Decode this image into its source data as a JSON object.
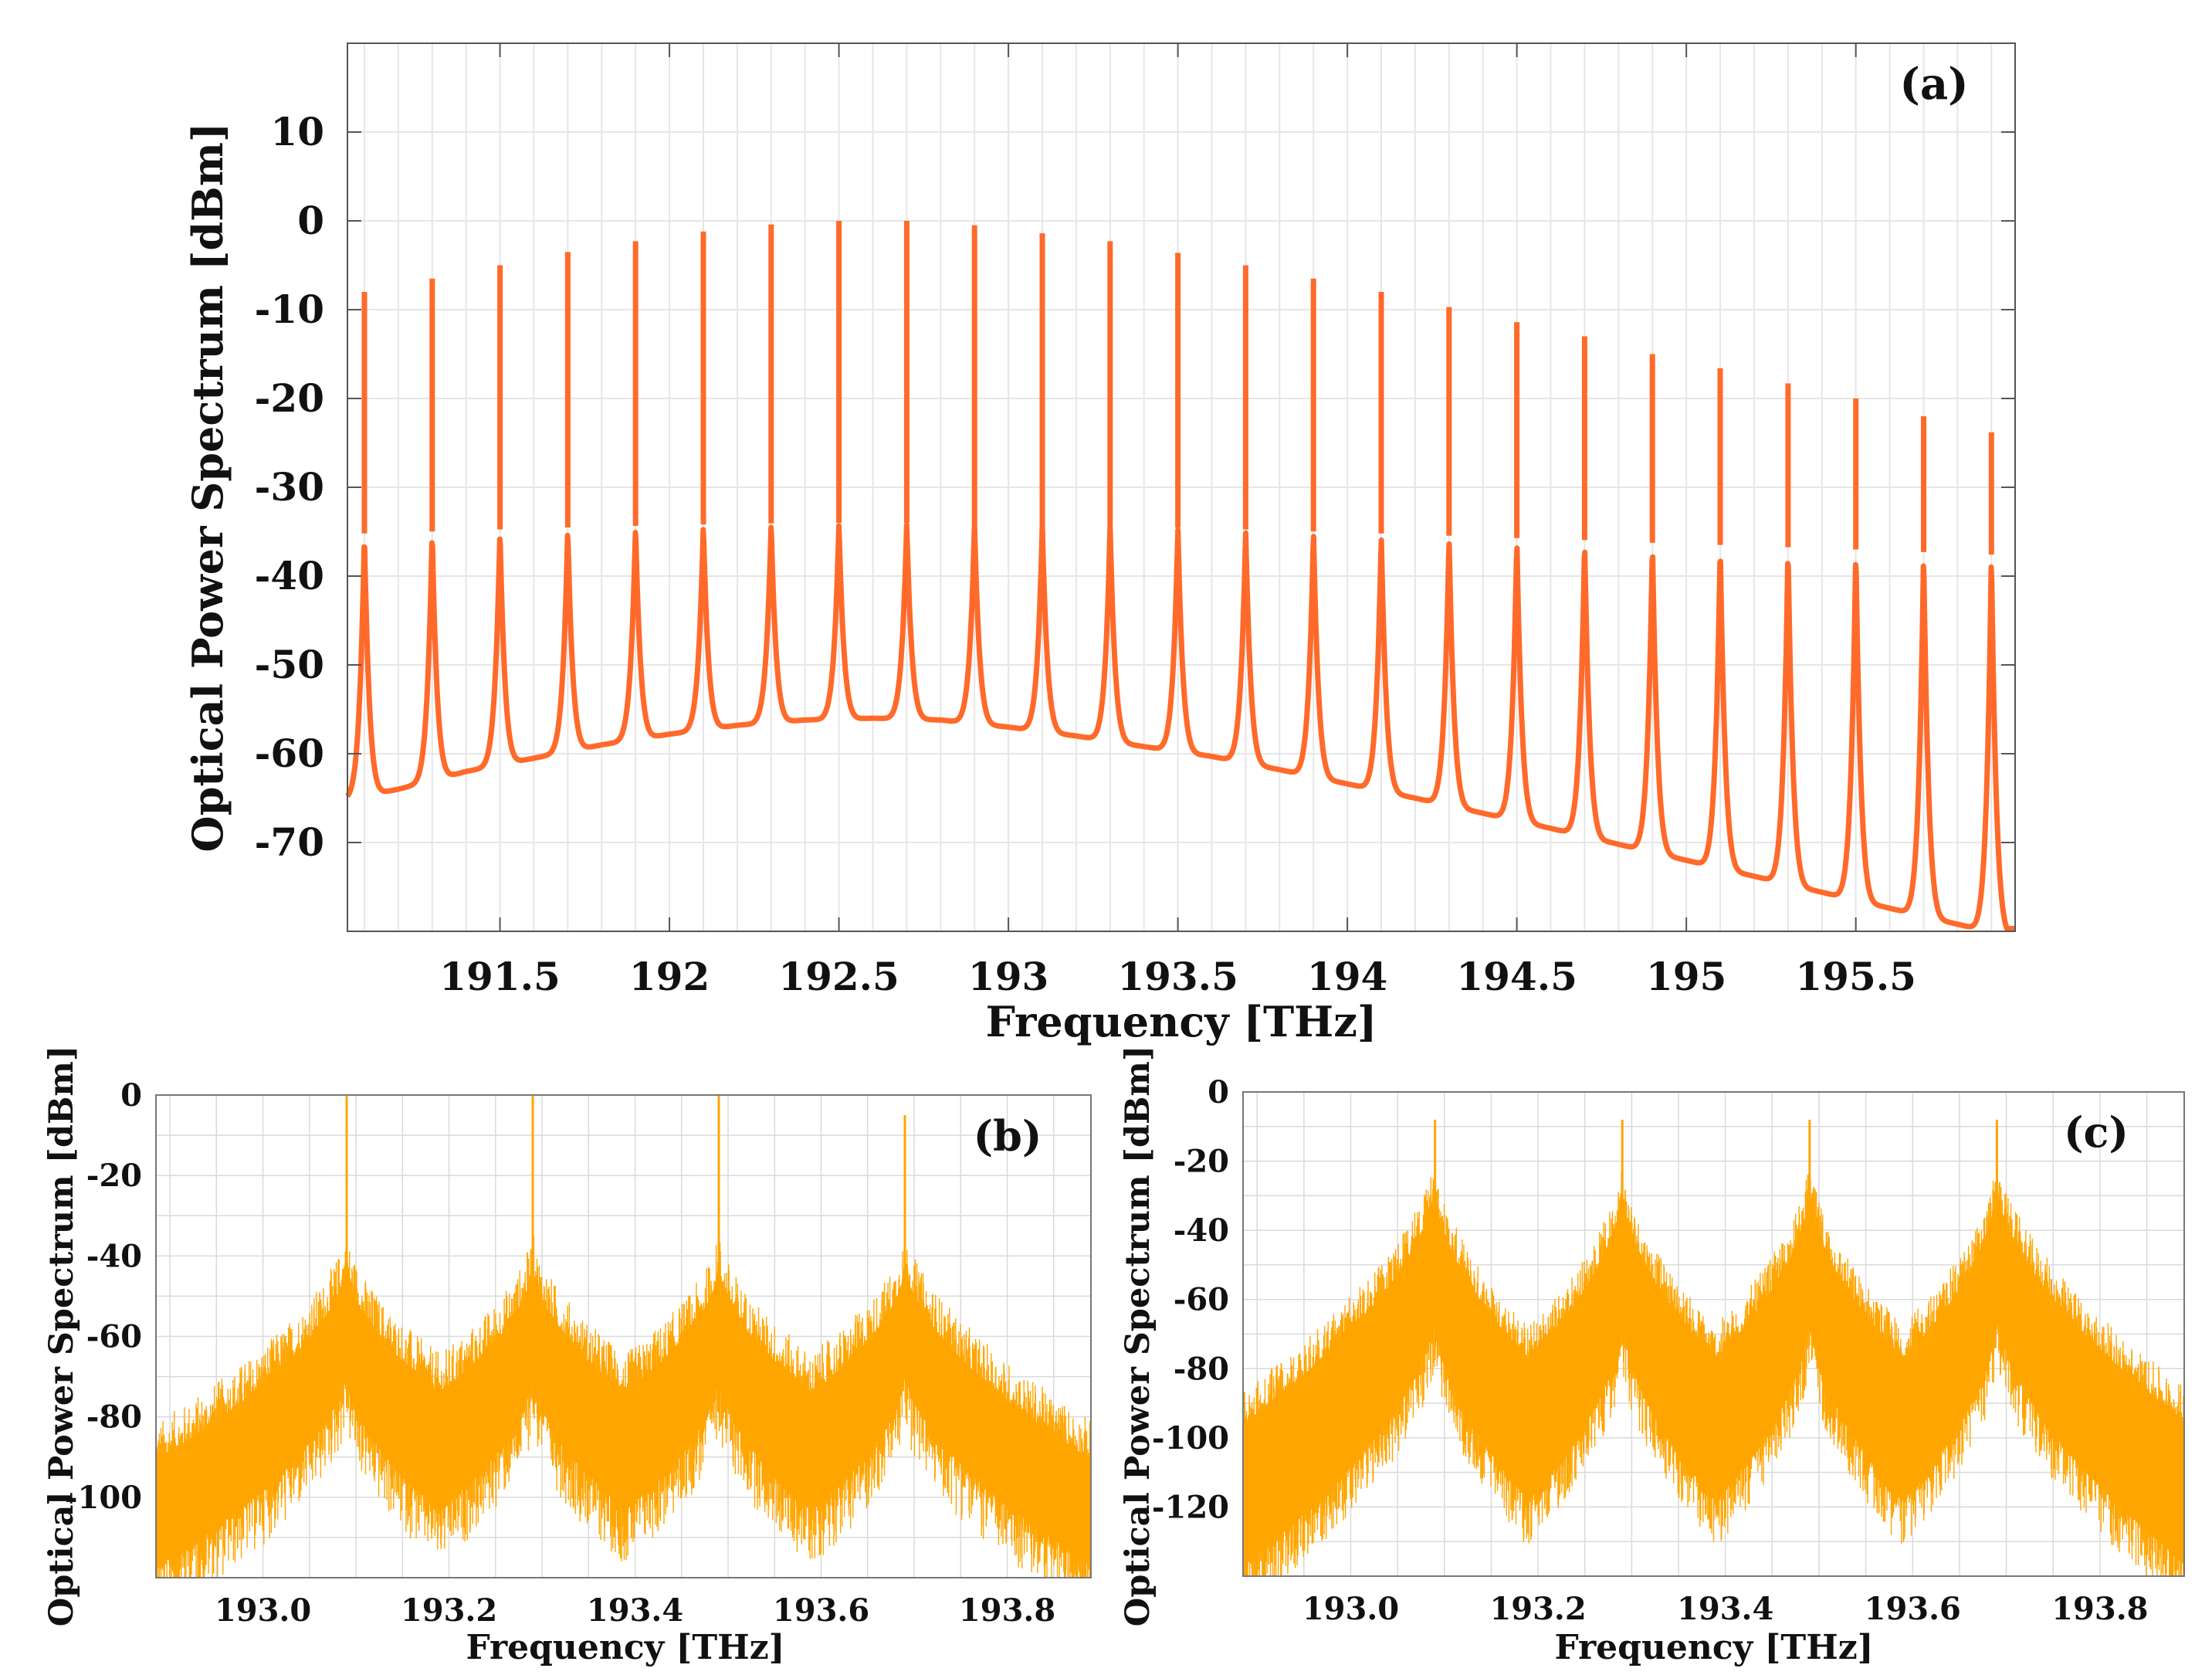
{
  "colors": {
    "panel_a_line": "#ff6a2a",
    "panel_bc_fill": "#ffa500",
    "grid": "#e6e6e6",
    "grid_bc": "#d9d9d9",
    "axes": "#555555"
  },
  "chart_data": [
    {
      "id": "a",
      "type": "line",
      "panel_label": "(a)",
      "xlabel": "Frequency [THz]",
      "ylabel": "Optical Power Spectrum [dBm]",
      "xlim": [
        191.05,
        195.97
      ],
      "ylim": [
        -80,
        20
      ],
      "xticks": [
        191.5,
        192,
        192.5,
        193,
        193.5,
        194,
        194.5,
        195,
        195.5
      ],
      "xtick_labels": [
        "191.5",
        "192",
        "192.5",
        "193",
        "193.5",
        "194",
        "194.5",
        "195",
        "195.5"
      ],
      "yticks": [
        10,
        0,
        -10,
        -20,
        -30,
        -40,
        -50,
        -60,
        -70
      ],
      "ytick_labels": [
        "10",
        "0",
        "-10",
        "-20",
        "-30",
        "-40",
        "-50",
        "-60",
        "-70"
      ],
      "grid": true,
      "series": [
        {
          "peaks_x": [
            191.1,
            191.3,
            191.5,
            191.7,
            191.9,
            192.1,
            192.3,
            192.5,
            192.7,
            192.9,
            193.1,
            193.3,
            193.5,
            193.7,
            193.9,
            194.1,
            194.3,
            194.5,
            194.7,
            194.9,
            195.1,
            195.3,
            195.5,
            195.7,
            195.9
          ],
          "peaks_y": [
            -8,
            -6.5,
            -5,
            -3.5,
            -2.3,
            -1.2,
            -0.4,
            0,
            0,
            -0.5,
            -1.4,
            -2.3,
            -3.6,
            -5,
            -6.5,
            -8,
            -9.7,
            -11.4,
            -13,
            -15,
            -16.6,
            -18.3,
            -20,
            -22,
            -23.8
          ],
          "valley_x": [
            191.2,
            191.4,
            191.6,
            191.8,
            192.0,
            192.2,
            192.4,
            192.6,
            192.8,
            193.0,
            193.2,
            193.4,
            193.6,
            193.8,
            194.0,
            194.2,
            194.4,
            194.6,
            194.8,
            195.0,
            195.2,
            195.4,
            195.6,
            195.8
          ],
          "valley_y": [
            -64,
            -62,
            -60.5,
            -59,
            -57.8,
            -56.8,
            -56.2,
            -56,
            -56.2,
            -57,
            -58,
            -59.2,
            -60.3,
            -61.8,
            -63.4,
            -65,
            -66.7,
            -68.4,
            -70.2,
            -72,
            -73.8,
            -75.6,
            -77.4,
            -79.2
          ]
        }
      ]
    },
    {
      "id": "b",
      "type": "area",
      "panel_label": "(b)",
      "xlabel": "Frequency [THz]",
      "ylabel": "Optical Power Spectrum [dBm]",
      "xlim": [
        192.885,
        193.89
      ],
      "ylim": [
        -120,
        0
      ],
      "xticks": [
        193.0,
        193.2,
        193.4,
        193.6,
        193.8
      ],
      "xtick_labels": [
        "193.0",
        "193.2",
        "193.4",
        "193.6",
        "193.8"
      ],
      "yticks": [
        0,
        -20,
        -40,
        -60,
        -80,
        -100
      ],
      "ytick_labels": [
        "0",
        "-20",
        "-40",
        "-60",
        "-80",
        "-100"
      ],
      "grid": true,
      "peaks_x": [
        193.09,
        193.29,
        193.49,
        193.69
      ],
      "peaks_y": [
        0,
        0,
        0,
        -5
      ],
      "envelope_top_at_peaks": -45,
      "envelope_bottom_at_peaks": -65,
      "valley_x": [
        193.19,
        193.39,
        193.59
      ],
      "valley_top": -77,
      "valley_bottom": -100,
      "edge_top": -95,
      "edge_bottom": -115
    },
    {
      "id": "c",
      "type": "area",
      "panel_label": "(c)",
      "xlabel": "Frequency [THz]",
      "ylabel": "Optical Power Spectrum [dBm]",
      "xlim": [
        192.885,
        193.89
      ],
      "ylim": [
        -140,
        0
      ],
      "xticks": [
        193.0,
        193.2,
        193.4,
        193.6,
        193.8
      ],
      "xtick_labels": [
        "193.0",
        "193.2",
        "193.4",
        "193.6",
        "193.8"
      ],
      "yticks": [
        0,
        -20,
        -40,
        -60,
        -80,
        -100,
        -120
      ],
      "ytick_labels": [
        "0",
        "-20",
        "-40",
        "-60",
        "-80",
        "-100",
        "-120"
      ],
      "grid": true,
      "peaks_x": [
        193.09,
        193.29,
        193.49,
        193.69
      ],
      "peaks_y": [
        -8,
        -8,
        -8,
        -8
      ],
      "envelope_top_at_peaks": -30,
      "envelope_bottom_at_peaks": -60,
      "valley_x": [
        193.19,
        193.39,
        193.59
      ],
      "valley_top": -80,
      "valley_bottom": -115,
      "edge_top": -100,
      "edge_bottom": -135
    }
  ]
}
